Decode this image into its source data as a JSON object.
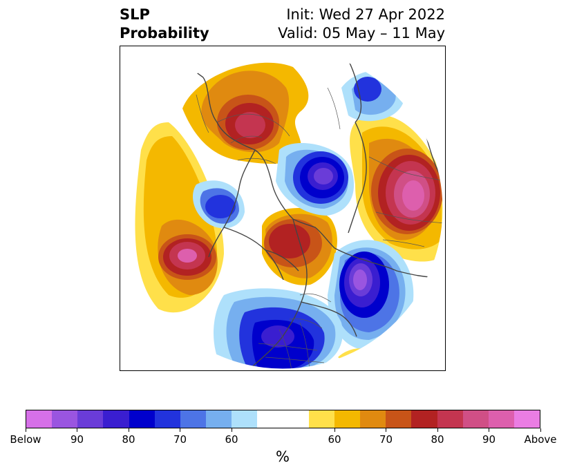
{
  "title": {
    "variable": "SLP",
    "product": "Probability",
    "init": "Init: Wed 27 Apr 2022",
    "valid": "Valid: 05 May – 11 May"
  },
  "colorbar": {
    "colors": [
      "#d670e8",
      "#9a55e0",
      "#6a3cd8",
      "#3a1ed0",
      "#0000cc",
      "#2233dd",
      "#4d74e6",
      "#76afef",
      "#aee0fb",
      "#ffffff",
      "#ffffff",
      "#ffe04a",
      "#f4b800",
      "#e08a10",
      "#c85418",
      "#b22222",
      "#c43550",
      "#d04f86",
      "#dd5fad",
      "#ea7de3"
    ],
    "tick_labels": [
      "Below",
      "90",
      "80",
      "70",
      "60",
      "60",
      "70",
      "80",
      "90",
      "Above"
    ],
    "unit": "%"
  },
  "map_features": {
    "projection": "north-polar-stereographic",
    "shading_variable": "sea-level-pressure-probability",
    "colors": {
      "coastline": "#444444",
      "borders": "#555555",
      "above_high": "#dd5fad",
      "above_mid": "#b22222",
      "above_low": "#f4b800",
      "below_high": "#9a55e0",
      "below_mid": "#0000cc",
      "below_low": "#aee0fb"
    }
  }
}
